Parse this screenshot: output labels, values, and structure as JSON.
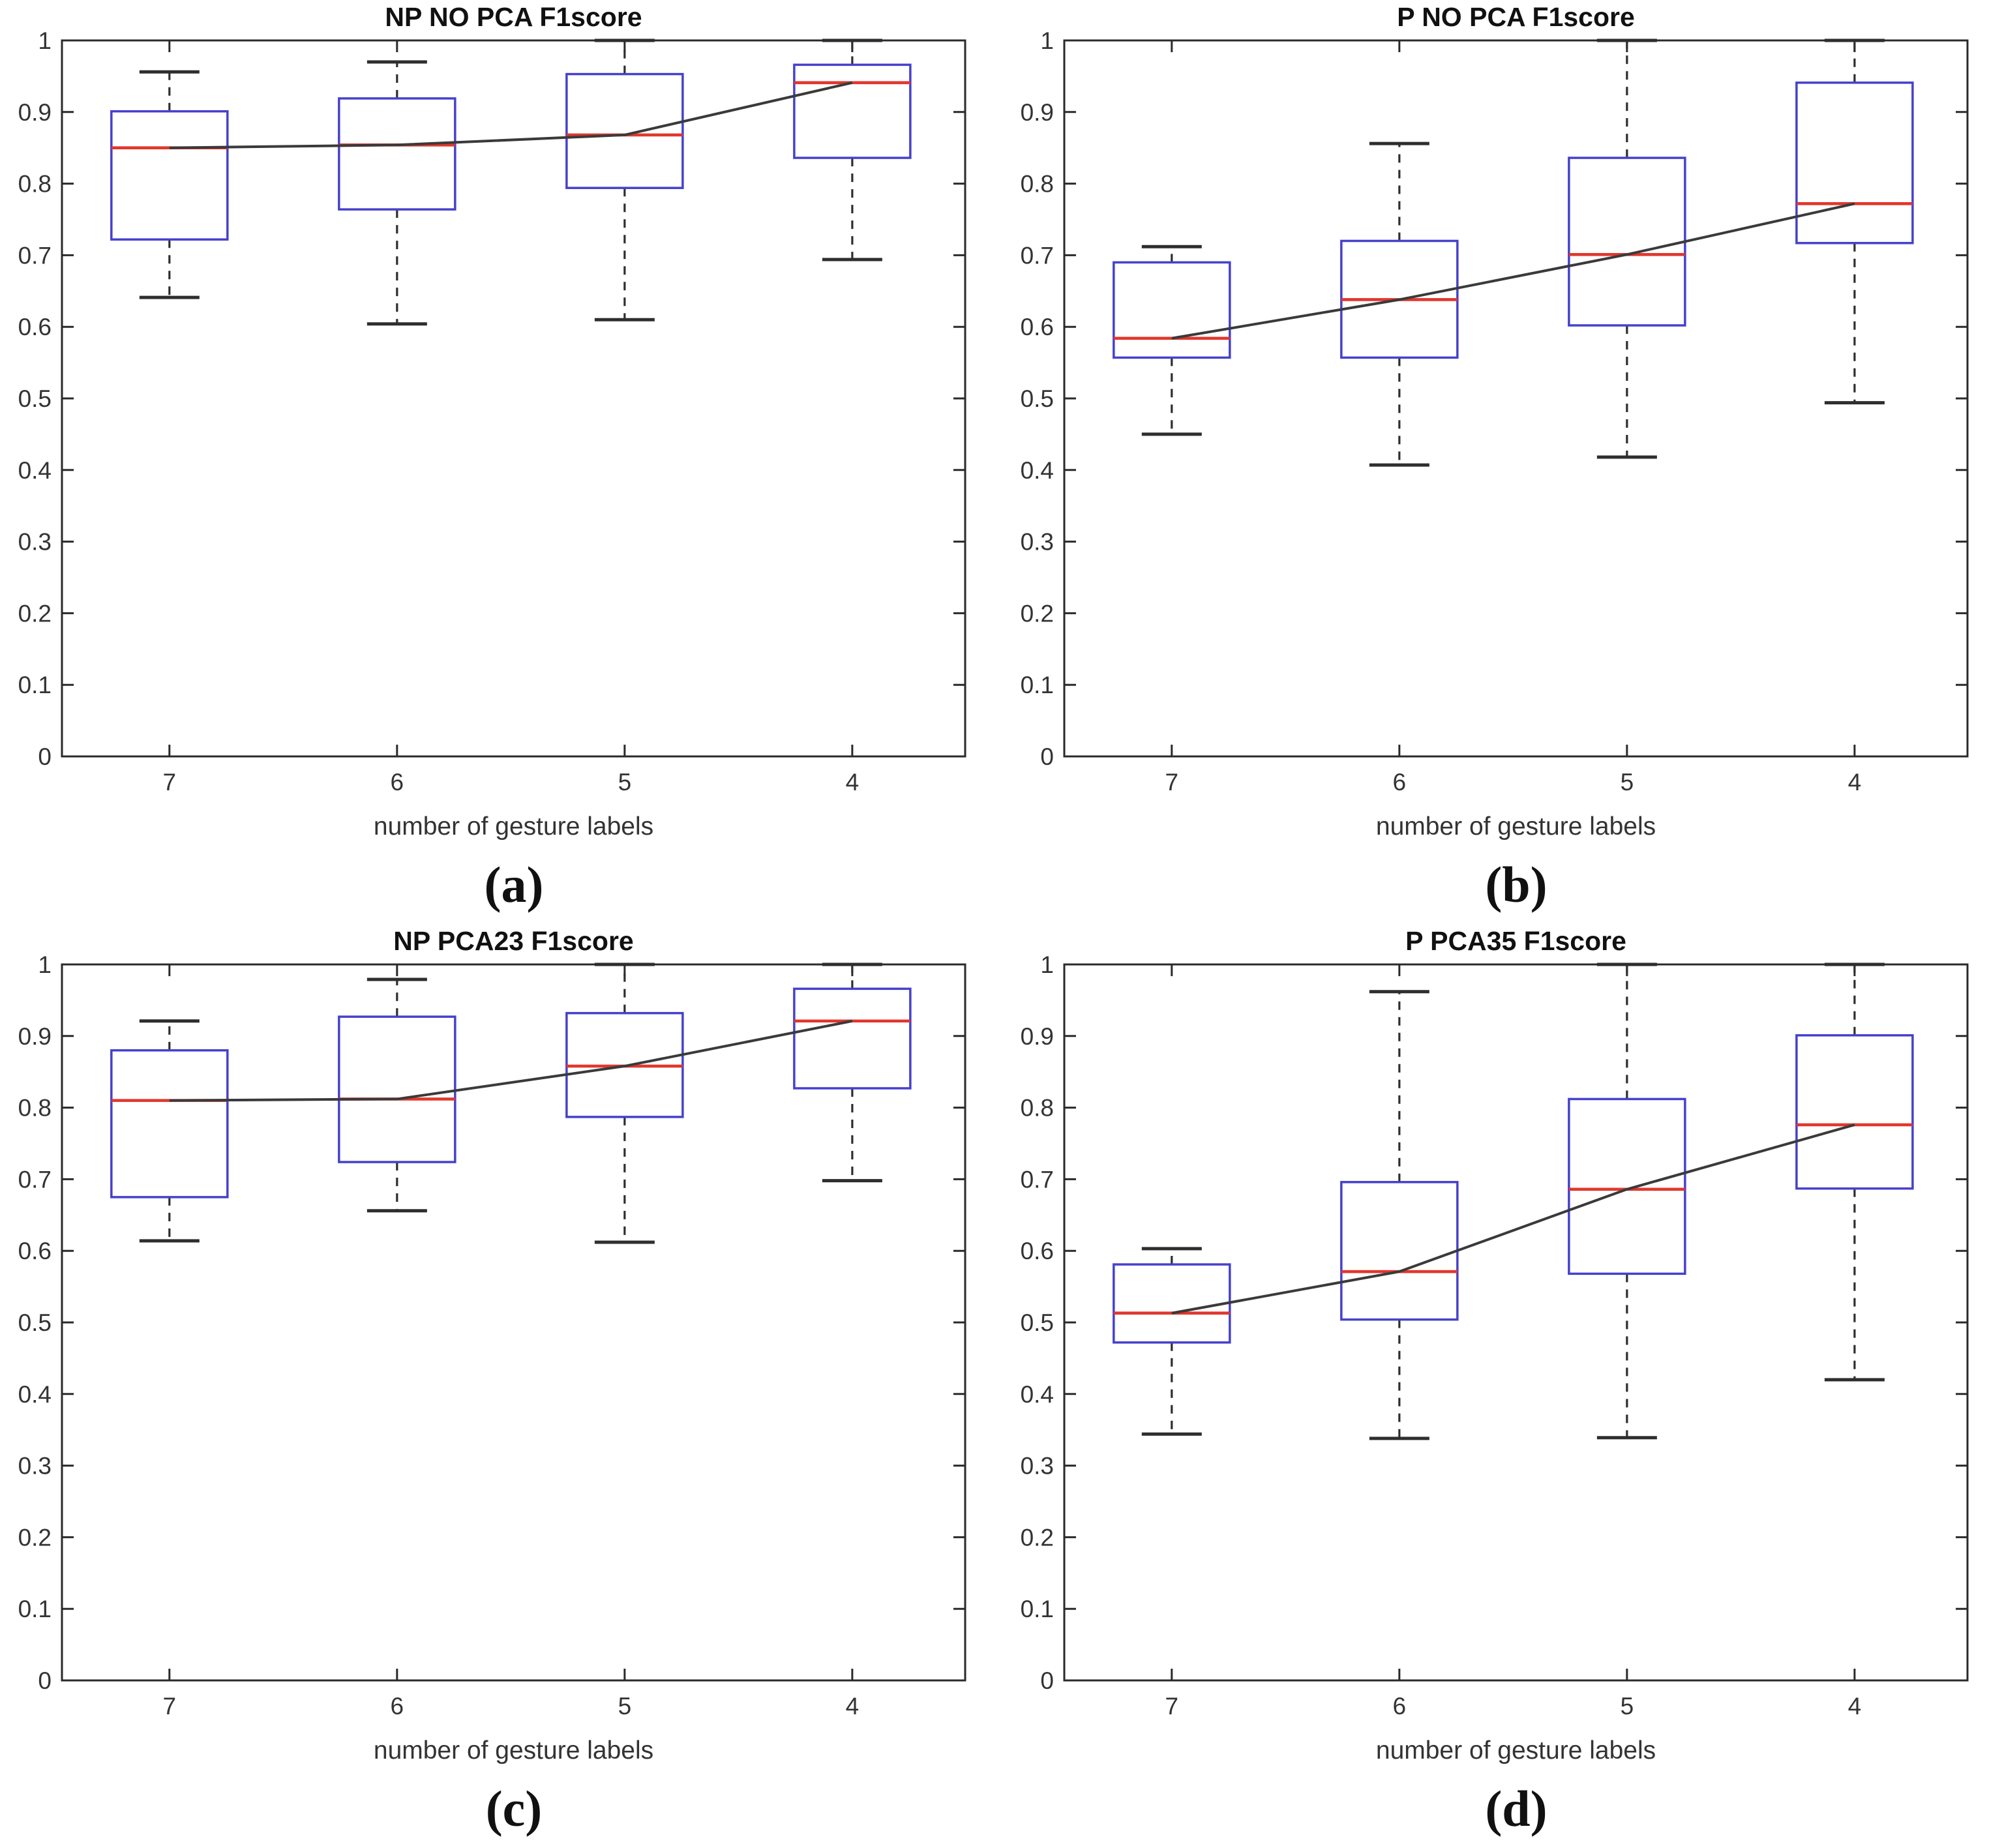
{
  "figure": {
    "background": "#ffffff",
    "colors": {
      "box": "#4641cd",
      "median": "#e1372d",
      "whisker": "#2e2e2e",
      "cap": "#2e2e2e",
      "trend": "#3a3a3a",
      "axis": "#2a2a2a",
      "tick_text": "#333333",
      "title_text": "#111111"
    }
  },
  "chart_data": [
    {
      "id": "a",
      "type": "boxplot",
      "title": "NP NO PCA F1score",
      "xlabel": "number of gesture labels",
      "caption": "(a)",
      "categories": [
        "7",
        "6",
        "5",
        "4"
      ],
      "ylim": [
        0,
        1
      ],
      "yticks": [
        0,
        0.1,
        0.2,
        0.3,
        0.4,
        0.5,
        0.6,
        0.7,
        0.8,
        0.9,
        1
      ],
      "ytick_labels": [
        "0",
        "0.1",
        "0.2",
        "0.3",
        "0.4",
        "0.5",
        "0.6",
        "0.7",
        "0.8",
        "0.9",
        "1"
      ],
      "grid": false,
      "legend": "none",
      "boxes": [
        {
          "category": "7",
          "whisker_low": 0.641,
          "q1": 0.722,
          "median": 0.85,
          "q3": 0.901,
          "whisker_high": 0.956
        },
        {
          "category": "6",
          "whisker_low": 0.604,
          "q1": 0.764,
          "median": 0.854,
          "q3": 0.919,
          "whisker_high": 0.97
        },
        {
          "category": "5",
          "whisker_low": 0.61,
          "q1": 0.794,
          "median": 0.868,
          "q3": 0.953,
          "whisker_high": 1.0
        },
        {
          "category": "4",
          "whisker_low": 0.694,
          "q1": 0.836,
          "median": 0.941,
          "q3": 0.966,
          "whisker_high": 1.0
        }
      ],
      "median_trend": [
        0.85,
        0.854,
        0.868,
        0.941
      ]
    },
    {
      "id": "b",
      "type": "boxplot",
      "title": "P NO PCA F1score",
      "xlabel": "number of gesture labels",
      "caption": "(b)",
      "categories": [
        "7",
        "6",
        "5",
        "4"
      ],
      "ylim": [
        0,
        1
      ],
      "yticks": [
        0,
        0.1,
        0.2,
        0.3,
        0.4,
        0.5,
        0.6,
        0.7,
        0.8,
        0.9,
        1
      ],
      "ytick_labels": [
        "0",
        "0.1",
        "0.2",
        "0.3",
        "0.4",
        "0.5",
        "0.6",
        "0.7",
        "0.8",
        "0.9",
        "1"
      ],
      "grid": false,
      "legend": "none",
      "boxes": [
        {
          "category": "7",
          "whisker_low": 0.45,
          "q1": 0.557,
          "median": 0.584,
          "q3": 0.69,
          "whisker_high": 0.712
        },
        {
          "category": "6",
          "whisker_low": 0.407,
          "q1": 0.557,
          "median": 0.638,
          "q3": 0.72,
          "whisker_high": 0.856
        },
        {
          "category": "5",
          "whisker_low": 0.418,
          "q1": 0.602,
          "median": 0.701,
          "q3": 0.836,
          "whisker_high": 1.0
        },
        {
          "category": "4",
          "whisker_low": 0.494,
          "q1": 0.717,
          "median": 0.772,
          "q3": 0.941,
          "whisker_high": 1.0
        }
      ],
      "median_trend": [
        0.584,
        0.638,
        0.701,
        0.772
      ]
    },
    {
      "id": "c",
      "type": "boxplot",
      "title": "NP PCA23 F1score",
      "xlabel": "number of gesture labels",
      "caption": "(c)",
      "categories": [
        "7",
        "6",
        "5",
        "4"
      ],
      "ylim": [
        0,
        1
      ],
      "yticks": [
        0,
        0.1,
        0.2,
        0.3,
        0.4,
        0.5,
        0.6,
        0.7,
        0.8,
        0.9,
        1
      ],
      "ytick_labels": [
        "0",
        "0.1",
        "0.2",
        "0.3",
        "0.4",
        "0.5",
        "0.6",
        "0.7",
        "0.8",
        "0.9",
        "1"
      ],
      "grid": false,
      "legend": "none",
      "boxes": [
        {
          "category": "7",
          "whisker_low": 0.614,
          "q1": 0.675,
          "median": 0.81,
          "q3": 0.88,
          "whisker_high": 0.921
        },
        {
          "category": "6",
          "whisker_low": 0.656,
          "q1": 0.724,
          "median": 0.812,
          "q3": 0.927,
          "whisker_high": 0.979
        },
        {
          "category": "5",
          "whisker_low": 0.612,
          "q1": 0.787,
          "median": 0.858,
          "q3": 0.932,
          "whisker_high": 1.0
        },
        {
          "category": "4",
          "whisker_low": 0.698,
          "q1": 0.827,
          "median": 0.921,
          "q3": 0.966,
          "whisker_high": 1.0
        }
      ],
      "median_trend": [
        0.81,
        0.812,
        0.858,
        0.921
      ]
    },
    {
      "id": "d",
      "type": "boxplot",
      "title": "P PCA35 F1score",
      "xlabel": "number of gesture labels",
      "caption": "(d)",
      "categories": [
        "7",
        "6",
        "5",
        "4"
      ],
      "ylim": [
        0,
        1
      ],
      "yticks": [
        0,
        0.1,
        0.2,
        0.3,
        0.4,
        0.5,
        0.6,
        0.7,
        0.8,
        0.9,
        1
      ],
      "ytick_labels": [
        "0",
        "0.1",
        "0.2",
        "0.3",
        "0.4",
        "0.5",
        "0.6",
        "0.7",
        "0.8",
        "0.9",
        "1"
      ],
      "grid": false,
      "legend": "none",
      "boxes": [
        {
          "category": "7",
          "whisker_low": 0.344,
          "q1": 0.472,
          "median": 0.513,
          "q3": 0.581,
          "whisker_high": 0.603
        },
        {
          "category": "6",
          "whisker_low": 0.338,
          "q1": 0.504,
          "median": 0.571,
          "q3": 0.696,
          "whisker_high": 0.962
        },
        {
          "category": "5",
          "whisker_low": 0.339,
          "q1": 0.568,
          "median": 0.686,
          "q3": 0.812,
          "whisker_high": 1.0
        },
        {
          "category": "4",
          "whisker_low": 0.42,
          "q1": 0.687,
          "median": 0.776,
          "q3": 0.901,
          "whisker_high": 1.0
        }
      ],
      "median_trend": [
        0.513,
        0.571,
        0.686,
        0.776
      ]
    }
  ]
}
